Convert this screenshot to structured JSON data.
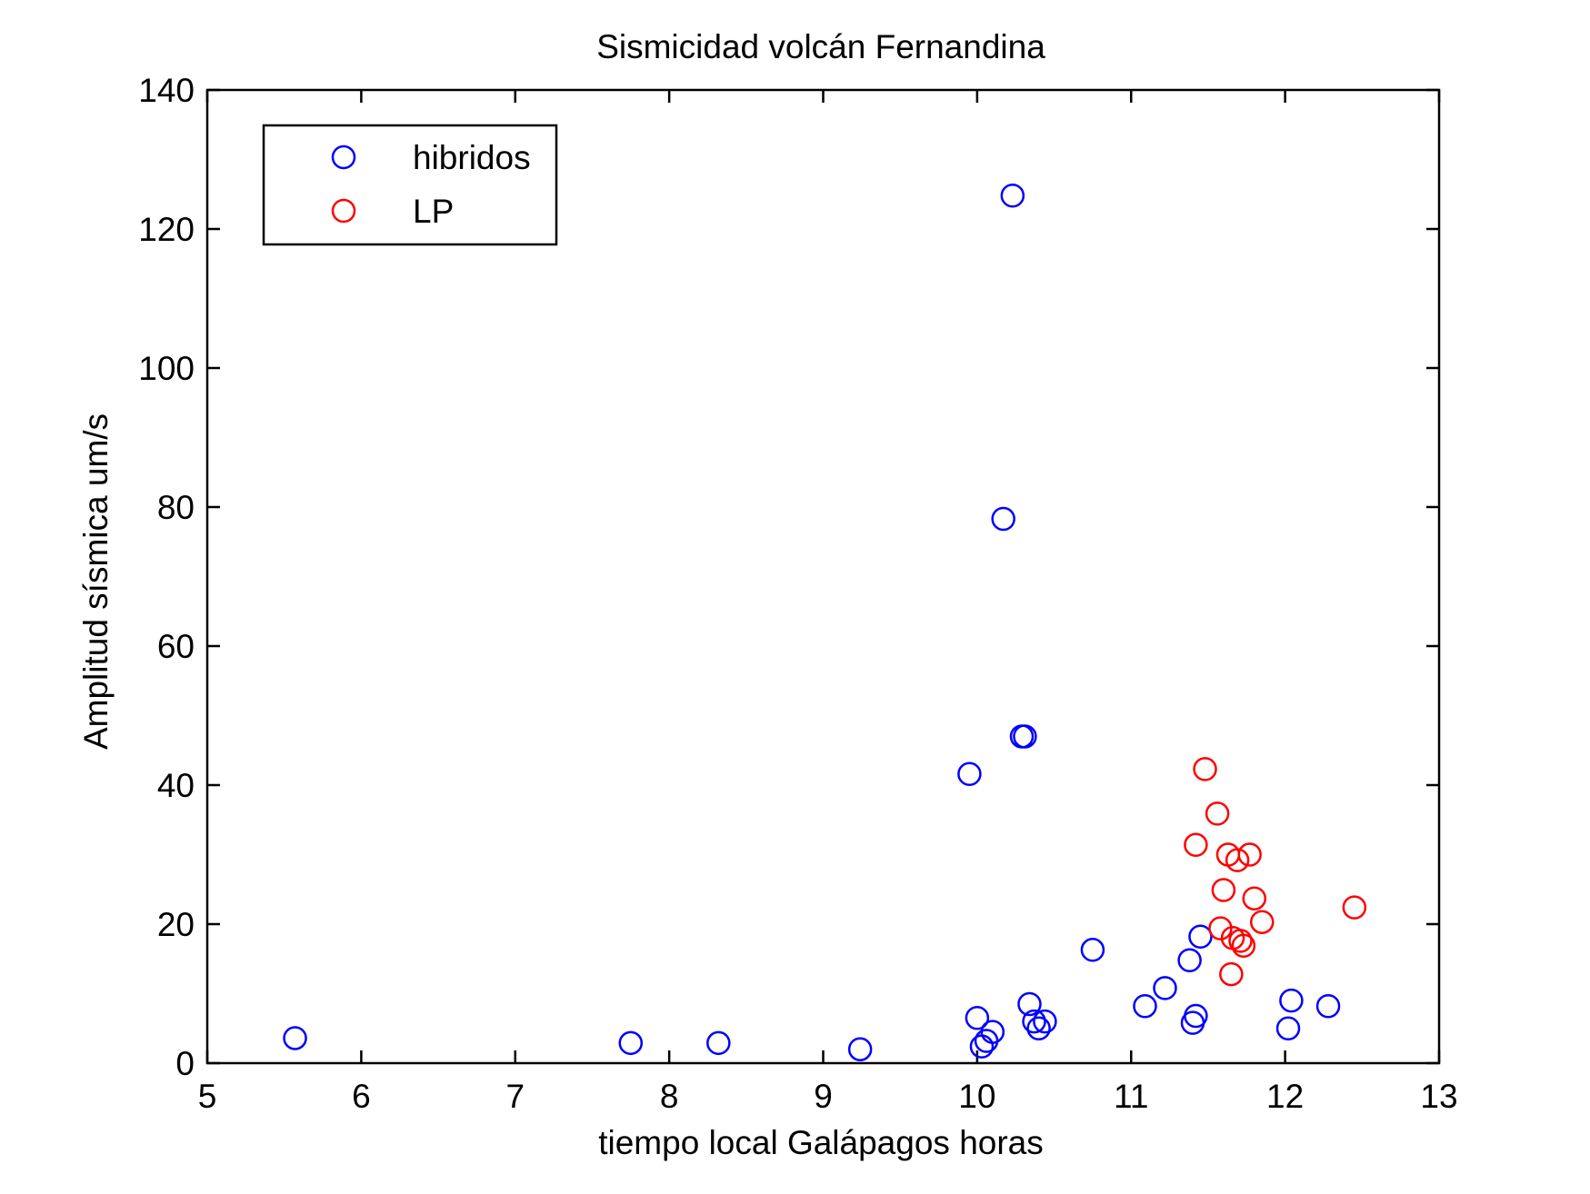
{
  "chart_data": {
    "type": "scatter",
    "title": "Sismicidad volcán Fernandina",
    "xlabel": "tiempo local Galápagos horas",
    "ylabel": "Amplitud sísmica um/s",
    "xlim": [
      5,
      13
    ],
    "ylim": [
      0,
      140
    ],
    "xticks": [
      5,
      6,
      7,
      8,
      9,
      10,
      11,
      12,
      13
    ],
    "yticks": [
      0,
      20,
      40,
      60,
      80,
      100,
      120,
      140
    ],
    "grid": false,
    "legend_position": "top-left",
    "marker": "open-circle",
    "series": [
      {
        "name": "hibridos",
        "color": "#0000ff",
        "points": [
          [
            5.57,
            3.6
          ],
          [
            7.75,
            2.9
          ],
          [
            8.32,
            2.9
          ],
          [
            9.24,
            2.0
          ],
          [
            9.95,
            41.6
          ],
          [
            10.0,
            6.5
          ],
          [
            10.03,
            2.4
          ],
          [
            10.06,
            3.2
          ],
          [
            10.1,
            4.5
          ],
          [
            10.17,
            78.3
          ],
          [
            10.23,
            124.8
          ],
          [
            10.29,
            47.0
          ],
          [
            10.31,
            47.0
          ],
          [
            10.34,
            8.5
          ],
          [
            10.37,
            6.0
          ],
          [
            10.4,
            5.0
          ],
          [
            10.44,
            6.0
          ],
          [
            10.75,
            16.3
          ],
          [
            11.09,
            8.2
          ],
          [
            11.22,
            10.8
          ],
          [
            11.38,
            14.8
          ],
          [
            11.4,
            5.8
          ],
          [
            11.42,
            6.8
          ],
          [
            11.45,
            18.2
          ],
          [
            12.02,
            5.0
          ],
          [
            12.04,
            9.0
          ],
          [
            12.28,
            8.2
          ]
        ]
      },
      {
        "name": "LP",
        "color": "#ff0000",
        "points": [
          [
            11.42,
            31.4
          ],
          [
            11.48,
            42.3
          ],
          [
            11.56,
            35.9
          ],
          [
            11.58,
            19.4
          ],
          [
            11.6,
            24.9
          ],
          [
            11.63,
            30.0
          ],
          [
            11.65,
            12.8
          ],
          [
            11.66,
            18.0
          ],
          [
            11.69,
            29.2
          ],
          [
            11.71,
            17.6
          ],
          [
            11.73,
            16.9
          ],
          [
            11.77,
            30.0
          ],
          [
            11.8,
            23.7
          ],
          [
            11.85,
            20.3
          ],
          [
            12.45,
            22.4
          ]
        ]
      }
    ]
  }
}
